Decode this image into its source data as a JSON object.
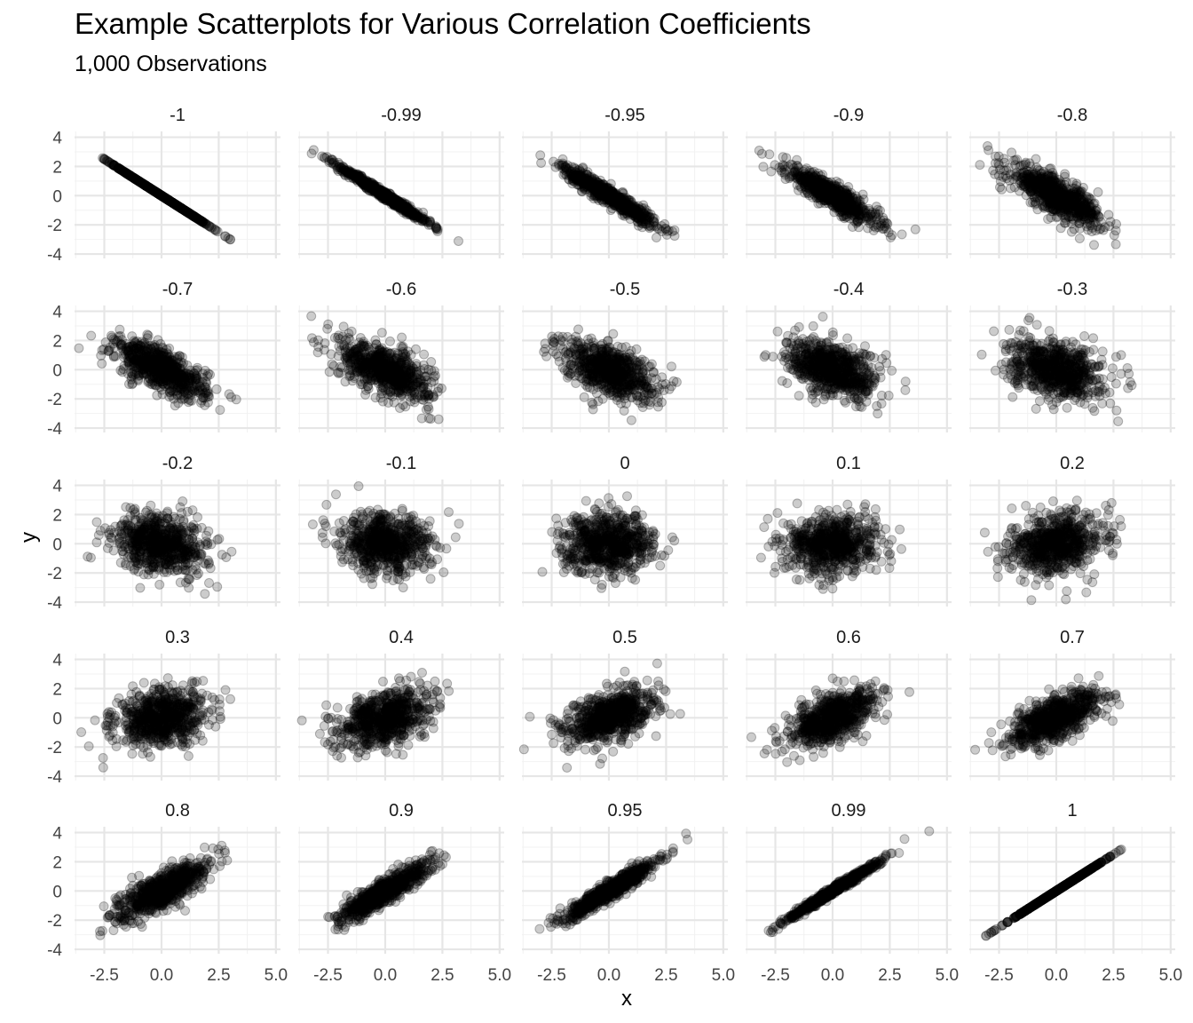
{
  "title": "Example Scatterplots for Various Correlation Coefficients",
  "subtitle": "1,000 Observations",
  "chart_data": {
    "type": "scatter",
    "layout": "facet grid 5x5",
    "n_observations": 1000,
    "xlabel": "x",
    "ylabel": "y",
    "xlim": [
      -3.8,
      5.2
    ],
    "ylim": [
      -4.3,
      4.4
    ],
    "x_ticks": [
      "-2.5",
      "0.0",
      "2.5",
      "5.0"
    ],
    "y_ticks": [
      "4",
      "2",
      "0",
      "-2",
      "-4"
    ],
    "grid": true,
    "marker_color": "#000000",
    "marker_alpha": 0.2,
    "panels": [
      {
        "label": "-1",
        "r": -1
      },
      {
        "label": "-0.99",
        "r": -0.99
      },
      {
        "label": "-0.95",
        "r": -0.95
      },
      {
        "label": "-0.9",
        "r": -0.9
      },
      {
        "label": "-0.8",
        "r": -0.8
      },
      {
        "label": "-0.7",
        "r": -0.7
      },
      {
        "label": "-0.6",
        "r": -0.6
      },
      {
        "label": "-0.5",
        "r": -0.5
      },
      {
        "label": "-0.4",
        "r": -0.4
      },
      {
        "label": "-0.3",
        "r": -0.3
      },
      {
        "label": "-0.2",
        "r": -0.2
      },
      {
        "label": "-0.1",
        "r": -0.1
      },
      {
        "label": "0",
        "r": 0
      },
      {
        "label": "0.1",
        "r": 0.1
      },
      {
        "label": "0.2",
        "r": 0.2
      },
      {
        "label": "0.3",
        "r": 0.3
      },
      {
        "label": "0.4",
        "r": 0.4
      },
      {
        "label": "0.5",
        "r": 0.5
      },
      {
        "label": "0.6",
        "r": 0.6
      },
      {
        "label": "0.7",
        "r": 0.7
      },
      {
        "label": "0.8",
        "r": 0.8
      },
      {
        "label": "0.9",
        "r": 0.9
      },
      {
        "label": "0.95",
        "r": 0.95
      },
      {
        "label": "0.99",
        "r": 0.99
      },
      {
        "label": "1",
        "r": 1
      }
    ]
  }
}
